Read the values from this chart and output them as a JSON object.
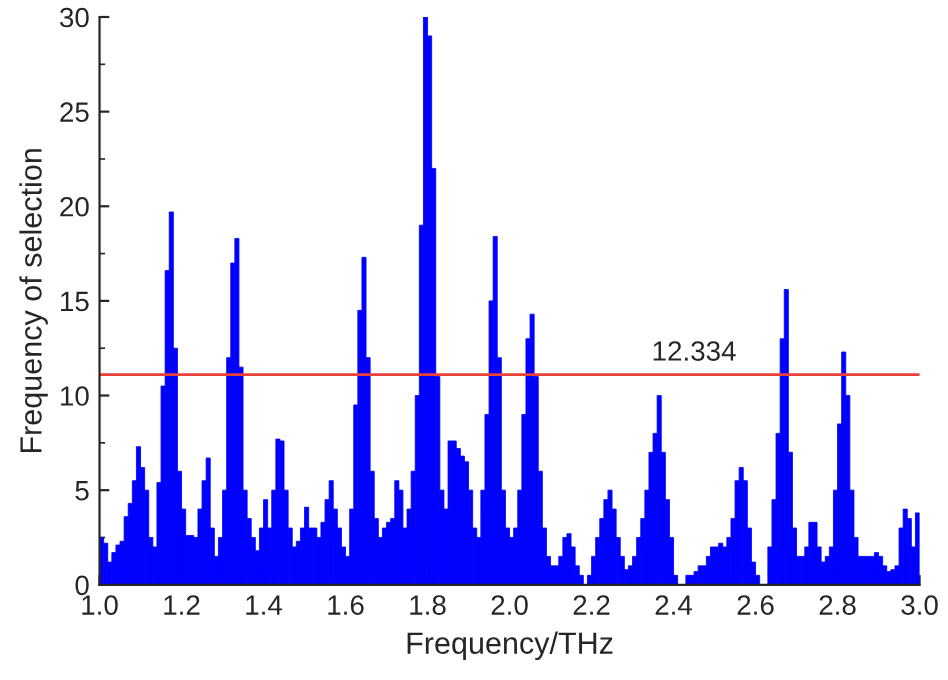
{
  "chart_data": {
    "type": "histogram",
    "xlabel": "Frequency/THz",
    "ylabel": "Frequency of selection",
    "color": "#0000ff",
    "bins": [
      1.0,
      1.01,
      1.02,
      1.03,
      1.04,
      1.05,
      1.06,
      1.07,
      1.08,
      1.09,
      1.1,
      1.11,
      1.12,
      1.13,
      1.14,
      1.15,
      1.16,
      1.17,
      1.18,
      1.19,
      1.2,
      1.21,
      1.22,
      1.23,
      1.24,
      1.25,
      1.26,
      1.27,
      1.28,
      1.29,
      1.3,
      1.31,
      1.32,
      1.33,
      1.34,
      1.35,
      1.36,
      1.37,
      1.38,
      1.39,
      1.4,
      1.41,
      1.42,
      1.43,
      1.44,
      1.45,
      1.46,
      1.47,
      1.48,
      1.49,
      1.5,
      1.51,
      1.52,
      1.53,
      1.54,
      1.55,
      1.56,
      1.57,
      1.58,
      1.59,
      1.6,
      1.61,
      1.62,
      1.63,
      1.64,
      1.65,
      1.66,
      1.67,
      1.68,
      1.69,
      1.7,
      1.71,
      1.72,
      1.73,
      1.74,
      1.75,
      1.76,
      1.77,
      1.78,
      1.79,
      1.8,
      1.81,
      1.82,
      1.83,
      1.84,
      1.85,
      1.86,
      1.87,
      1.88,
      1.89,
      1.9,
      1.91,
      1.92,
      1.93,
      1.94,
      1.95,
      1.96,
      1.97,
      1.98,
      1.99,
      2.0,
      2.01,
      2.02,
      2.03,
      2.04,
      2.05,
      2.06,
      2.07,
      2.08,
      2.09,
      2.1,
      2.11,
      2.12,
      2.13,
      2.14,
      2.15,
      2.16,
      2.17,
      2.18,
      2.19,
      2.2,
      2.21,
      2.22,
      2.23,
      2.24,
      2.25,
      2.26,
      2.27,
      2.28,
      2.29,
      2.3,
      2.31,
      2.32,
      2.33,
      2.34,
      2.35,
      2.36,
      2.37,
      2.38,
      2.39,
      2.4,
      2.41,
      2.42,
      2.43,
      2.44,
      2.45,
      2.46,
      2.47,
      2.48,
      2.49,
      2.5,
      2.51,
      2.52,
      2.53,
      2.54,
      2.55,
      2.56,
      2.57,
      2.58,
      2.59,
      2.6,
      2.61,
      2.62,
      2.63,
      2.64,
      2.65,
      2.66,
      2.67,
      2.68,
      2.69,
      2.7,
      2.71,
      2.72,
      2.73,
      2.74,
      2.75,
      2.76,
      2.77,
      2.78,
      2.79,
      2.8,
      2.81,
      2.82,
      2.83,
      2.84,
      2.85,
      2.86,
      2.87,
      2.88,
      2.89,
      2.9,
      2.91,
      2.92,
      2.93,
      2.94,
      2.95,
      2.96,
      2.97,
      2.98,
      2.99,
      3.0
    ],
    "values": [
      2.5,
      2.2,
      1.2,
      1.7,
      2.1,
      2.3,
      3.6,
      4.3,
      5.5,
      7.3,
      6.2,
      5.0,
      2.5,
      2.0,
      5.4,
      10.5,
      16.6,
      19.7,
      12.5,
      6.0,
      4.0,
      2.6,
      2.6,
      2.5,
      4.0,
      5.5,
      6.7,
      3.0,
      1.5,
      2.5,
      5.0,
      12.0,
      17.0,
      18.3,
      11.5,
      5.0,
      3.5,
      2.5,
      1.8,
      3.0,
      4.5,
      3.0,
      5.0,
      7.7,
      7.6,
      5.0,
      3.0,
      2.0,
      2.3,
      3.0,
      4.1,
      3.0,
      3.0,
      2.5,
      3.3,
      4.5,
      5.5,
      4.0,
      3.0,
      2.0,
      1.5,
      4.0,
      9.5,
      14.5,
      17.3,
      12.0,
      6.0,
      3.5,
      2.5,
      3.0,
      3.3,
      3.5,
      5.5,
      5.0,
      3.0,
      4.0,
      6.0,
      10.0,
      19.0,
      30.0,
      29.0,
      22.0,
      11.0,
      5.0,
      4.0,
      7.6,
      7.6,
      7.2,
      6.8,
      6.5,
      5.0,
      3.0,
      2.5,
      5.0,
      9.0,
      15.0,
      18.4,
      12.0,
      5.0,
      3.0,
      2.5,
      3.0,
      5.0,
      9.0,
      13.0,
      14.3,
      11.0,
      6.0,
      3.0,
      1.5,
      1.0,
      1.0,
      1.5,
      2.5,
      2.7,
      2.0,
      1.0,
      0.5,
      0,
      0.5,
      1.5,
      2.5,
      3.5,
      4.5,
      5.0,
      4.0,
      2.5,
      1.5,
      0.8,
      1.0,
      1.5,
      2.5,
      3.5,
      5.0,
      7.0,
      8.0,
      10.0,
      7.0,
      4.5,
      2.5,
      0.5,
      0,
      0,
      0.5,
      0.5,
      0.7,
      1.0,
      1.0,
      1.5,
      2.0,
      2.0,
      2.2,
      2.0,
      2.5,
      3.5,
      5.5,
      6.2,
      5.5,
      3.0,
      1.2,
      0.5,
      0,
      0,
      2.0,
      4.5,
      8.0,
      13.0,
      15.6,
      7.0,
      3.0,
      1.5,
      1.5,
      2.0,
      3.3,
      3.3,
      2.0,
      1.2,
      1.5,
      2.0,
      5.0,
      8.5,
      12.3,
      10.0,
      5.0,
      2.5,
      1.5,
      1.5,
      1.5,
      1.5,
      1.7,
      1.5,
      1.0,
      0.7,
      0.8,
      1.0,
      3.0,
      4.0,
      3.5,
      2.0,
      3.8
    ],
    "xlim": [
      1.0,
      3.0
    ],
    "xticks": [
      {
        "value": 1,
        "label": "1.0"
      },
      1.2,
      1.4,
      1.6,
      1.8,
      {
        "value": 2,
        "label": "2.0"
      },
      2.2,
      2.4,
      2.6,
      2.8,
      {
        "value": 3,
        "label": "3.0"
      }
    ],
    "ylim": [
      0,
      30
    ],
    "yticks": [
      0,
      5,
      10,
      15,
      20,
      25,
      30
    ],
    "annotations": [
      {
        "text": "12.334",
        "x": 2.45,
        "y": 11.1
      }
    ],
    "ref_lines": [
      {
        "axis": "y",
        "value": 11.1,
        "color": "#e8403a"
      }
    ]
  }
}
